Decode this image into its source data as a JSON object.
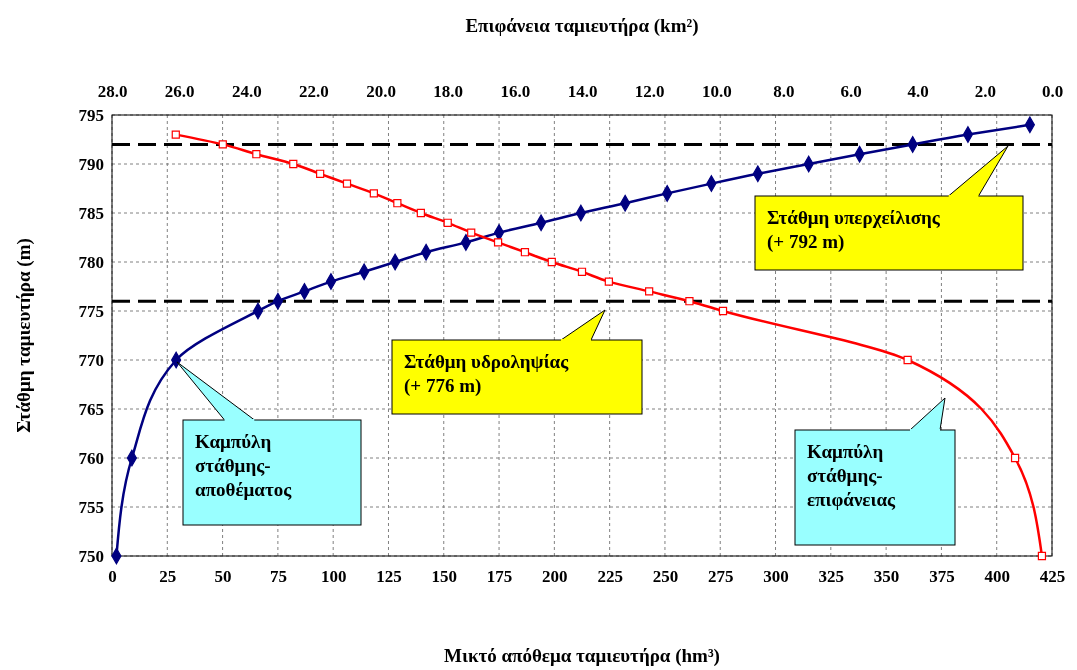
{
  "chart_data": {
    "type": "line",
    "xlabel": "Μικτό απόθεμα ταμιευτήρα (hm³)",
    "x2label": "Επιφάνεια ταμιευτήρα (km²)",
    "ylabel": "Στάθμη ταμιευτήρα (m)",
    "xlim": [
      0,
      425
    ],
    "xticks": [
      0,
      25,
      50,
      75,
      100,
      125,
      150,
      175,
      200,
      225,
      250,
      275,
      300,
      325,
      350,
      375,
      400,
      425
    ],
    "x2lim": [
      28,
      0
    ],
    "x2ticks": [
      {
        "value": 28,
        "label": "28.0"
      },
      {
        "value": 26,
        "label": "26.0"
      },
      {
        "value": 24,
        "label": "24.0"
      },
      {
        "value": 22,
        "label": "22.0"
      },
      {
        "value": 20,
        "label": "20.0"
      },
      {
        "value": 18,
        "label": "18.0"
      },
      {
        "value": 16,
        "label": "16.0"
      },
      {
        "value": 14,
        "label": "14.0"
      },
      {
        "value": 12,
        "label": "12.0"
      },
      {
        "value": 10,
        "label": "10.0"
      },
      {
        "value": 8,
        "label": "8.0"
      },
      {
        "value": 6,
        "label": "6.0"
      },
      {
        "value": 4,
        "label": "4.0"
      },
      {
        "value": 2,
        "label": "2.0"
      },
      {
        "value": 0,
        "label": "0.0"
      }
    ],
    "ylim": [
      750,
      795
    ],
    "yticks": [
      750,
      755,
      760,
      765,
      770,
      775,
      780,
      785,
      790,
      795
    ],
    "grid": true,
    "series": [
      {
        "color": "#000080",
        "marker": "diamond",
        "x": [
          2,
          9,
          29,
          66,
          75,
          87,
          99,
          114,
          128,
          142,
          160,
          175,
          194,
          212,
          232,
          251,
          271,
          292,
          315,
          338,
          362,
          387,
          415
        ],
        "values": [
          750,
          760,
          770,
          775,
          776,
          777,
          778,
          779,
          780,
          781,
          782,
          783,
          784,
          785,
          786,
          787,
          788,
          789,
          790,
          791,
          792,
          793,
          794
        ]
      },
      {
        "color": "#ff0000",
        "marker": "square",
        "axis": "x2",
        "x": [
          26.1,
          24.7,
          23.7,
          22.6,
          21.8,
          21,
          20.2,
          19.5,
          18.8,
          18,
          17.3,
          16.5,
          15.7,
          14.9,
          14,
          13.2,
          12,
          10.8,
          9.8,
          4.3,
          1.1,
          0.3
        ],
        "values": [
          793,
          792,
          791,
          790,
          789,
          788,
          787,
          786,
          785,
          784,
          783,
          782,
          781,
          780,
          779,
          778,
          777,
          776,
          775,
          770,
          760,
          750
        ]
      }
    ],
    "ref_lines": [
      {
        "axis": "y",
        "value": 792,
        "color": "#000000",
        "line_style": "dashed"
      },
      {
        "axis": "y",
        "value": 776,
        "color": "#000000",
        "line_style": "dashed"
      }
    ],
    "annotations": [
      "Στάθμη υπερχείλισης (+ 792 m)",
      "Στάθμη υδροληψίας (+ 776 m)",
      "Καμπύλη στάθμης-αποθέματος",
      "Καμπύλη στάθμης-επιφάνειας"
    ]
  }
}
